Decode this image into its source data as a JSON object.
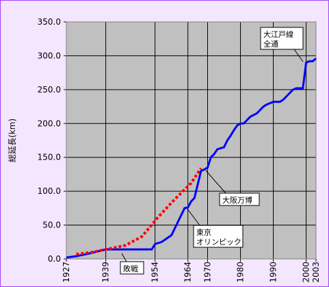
{
  "chart_data": {
    "type": "line",
    "y_label": "総延長(km)",
    "xlim": [
      1927,
      2003
    ],
    "xticks": [
      1927,
      1939,
      1954,
      1964,
      1970,
      1980,
      1990,
      2000,
      2003
    ],
    "ylim": [
      0,
      350
    ],
    "yticks": [
      {
        "value": 0,
        "label": "0.0"
      },
      {
        "value": 50,
        "label": "50.0"
      },
      {
        "value": 100,
        "label": "100.0"
      },
      {
        "value": 150,
        "label": "150.0"
      },
      {
        "value": 200,
        "label": "200.0"
      },
      {
        "value": 250,
        "label": "250.0"
      },
      {
        "value": 300,
        "label": "300.0"
      },
      {
        "value": 350,
        "label": "350.0"
      }
    ],
    "grid": true,
    "series": [
      {
        "color": "#0000ff",
        "dash": false,
        "x": [
          1927,
          1930,
          1934,
          1939,
          1953,
          1954,
          1956,
          1959,
          1960,
          1961,
          1962,
          1963,
          1964,
          1965,
          1966,
          1967,
          1968,
          1969,
          1970,
          1971,
          1972,
          1973,
          1975,
          1976,
          1977,
          1978,
          1979,
          1980,
          1981,
          1982,
          1983,
          1985,
          1986,
          1987,
          1988,
          1990,
          1992,
          1993,
          1994,
          1996,
          1997,
          1999,
          2000,
          2001,
          2002,
          2003
        ],
        "values": [
          2,
          4,
          8,
          14,
          14,
          22,
          25,
          35,
          45,
          55,
          65,
          75,
          76,
          85,
          90,
          110,
          130,
          132,
          135,
          150,
          155,
          162,
          165,
          175,
          182,
          190,
          197,
          200,
          200,
          205,
          210,
          215,
          220,
          225,
          228,
          232,
          232,
          235,
          240,
          250,
          252,
          252,
          290,
          292,
          292,
          296
        ]
      },
      {
        "color": "#ff0000",
        "dash": true,
        "x": [
          1930,
          1935,
          1940,
          1945,
          1950,
          1955,
          1960,
          1965,
          1968
        ],
        "values": [
          7,
          10,
          15,
          20,
          33,
          62,
          88,
          112,
          134
        ]
      }
    ],
    "annotations": [
      {
        "text": [
          "大江戸線",
          "全通"
        ]
      },
      {
        "text": [
          "大阪万博"
        ]
      },
      {
        "text": [
          "東京",
          "オリンピック"
        ]
      },
      {
        "text": [
          "敗戦"
        ]
      }
    ]
  }
}
